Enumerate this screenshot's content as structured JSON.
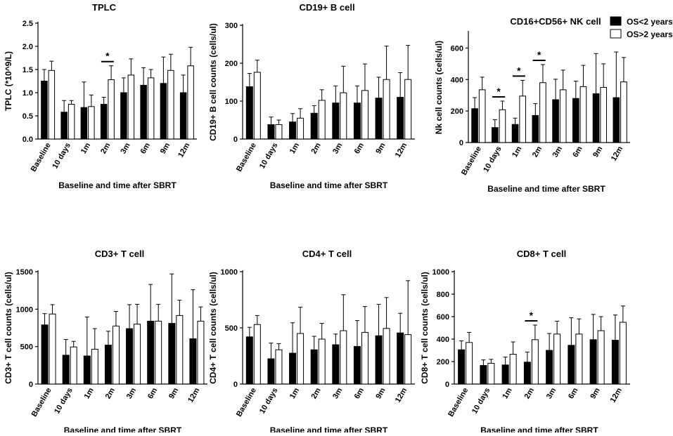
{
  "legend": {
    "series": [
      {
        "name": "OS<2 years",
        "color": "#000000"
      },
      {
        "name": "OS>2 years",
        "color": "#ffffff"
      }
    ]
  },
  "chart_data": [
    {
      "type": "bar",
      "title": "TPLC",
      "xlabel": "Baseline and time after SBRT",
      "ylabel": "TPLC (*10^9/L)",
      "ylim": [
        0,
        2.5
      ],
      "yticks": [
        "0.0",
        "0.5",
        "1.0",
        "1.5",
        "2.0",
        "2.5"
      ],
      "categories": [
        "Baseline",
        "10 days",
        "1m",
        "2m",
        "3m",
        "6m",
        "9m",
        "12m"
      ],
      "series": [
        {
          "name": "OS<2 years",
          "values": [
            1.25,
            0.58,
            0.68,
            0.75,
            1.0,
            1.16,
            1.2,
            1.0
          ],
          "errors": [
            0.25,
            0.25,
            0.55,
            0.15,
            0.32,
            0.38,
            0.57,
            0.38
          ]
        },
        {
          "name": "OS>2 years",
          "values": [
            1.48,
            0.75,
            0.7,
            1.28,
            1.38,
            1.32,
            1.48,
            1.58
          ],
          "errors": [
            0.2,
            0.08,
            0.25,
            0.3,
            0.35,
            0.18,
            0.35,
            0.4
          ]
        }
      ],
      "significance": [
        {
          "category": "2m",
          "label": "*"
        }
      ]
    },
    {
      "type": "bar",
      "title": "CD19+ B cell",
      "xlabel": "Baseline and time after SBRT",
      "ylabel": "CD19+ B cell counts (cells/ul)",
      "ylim": [
        0,
        300
      ],
      "yticks": [
        "0",
        "100",
        "200",
        "300"
      ],
      "categories": [
        "Baseline",
        "10 days",
        "1m",
        "2m",
        "3m",
        "6m",
        "9m",
        "12m"
      ],
      "series": [
        {
          "name": "OS<2 years",
          "values": [
            138,
            38,
            45,
            68,
            95,
            95,
            108,
            110
          ],
          "errors": [
            35,
            20,
            22,
            20,
            45,
            45,
            55,
            65
          ]
        },
        {
          "name": "OS>2 years",
          "values": [
            176,
            38,
            55,
            102,
            122,
            128,
            157,
            157
          ],
          "errors": [
            32,
            12,
            25,
            28,
            70,
            70,
            88,
            90
          ]
        }
      ],
      "significance": []
    },
    {
      "type": "bar",
      "title": "CD16+CD56+ NK cell",
      "xlabel": "Baseline and time after SBRT",
      "ylabel": "Nk cell counts (cells/ul)",
      "ylim": [
        0,
        700
      ],
      "yticks": [
        "0",
        "200",
        "400",
        "600"
      ],
      "categories": [
        "Baseline",
        "10 days",
        "1m",
        "2m",
        "3m",
        "6m",
        "9m",
        "12m"
      ],
      "series": [
        {
          "name": "OS<2 years",
          "values": [
            215,
            95,
            115,
            172,
            272,
            280,
            310,
            285
          ],
          "errors": [
            70,
            50,
            40,
            75,
            130,
            110,
            255,
            290
          ]
        },
        {
          "name": "OS>2 years",
          "values": [
            335,
            208,
            295,
            380,
            335,
            355,
            350,
            385
          ],
          "errors": [
            80,
            55,
            100,
            115,
            125,
            135,
            150,
            155
          ]
        }
      ],
      "significance": [
        {
          "category": "10 days",
          "label": "*"
        },
        {
          "category": "1m",
          "label": "*"
        },
        {
          "category": "2m",
          "label": "*"
        }
      ]
    },
    {
      "type": "bar",
      "title": "CD3+ T cell",
      "xlabel": "Baseline and time after SBRT",
      "ylabel": "CD3+ T cell counts (cells/ul)",
      "ylim": [
        0,
        1500
      ],
      "yticks": [
        "0",
        "500",
        "1000",
        "1500"
      ],
      "categories": [
        "Baseline",
        "10 days",
        "1m",
        "2m",
        "3m",
        "6m",
        "9m",
        "12m"
      ],
      "series": [
        {
          "name": "OS<2 years",
          "values": [
            790,
            385,
            375,
            520,
            740,
            840,
            810,
            605
          ],
          "errors": [
            150,
            210,
            520,
            185,
            320,
            490,
            660,
            655
          ]
        },
        {
          "name": "OS>2 years",
          "values": [
            935,
            495,
            465,
            775,
            800,
            840,
            915,
            840
          ],
          "errors": [
            125,
            75,
            275,
            195,
            265,
            225,
            205,
            190
          ]
        }
      ],
      "significance": []
    },
    {
      "type": "bar",
      "title": "CD4+ T cell",
      "xlabel": "Baseline and time after SBRT",
      "ylabel": "CD4+ T cell counts (cells/ul)",
      "ylim": [
        0,
        1000
      ],
      "yticks": [
        "0",
        "500",
        "1000"
      ],
      "categories": [
        "Baseline",
        "10 days",
        "1m",
        "2m",
        "3m",
        "6m",
        "9m",
        "12m"
      ],
      "series": [
        {
          "name": "OS<2 years",
          "values": [
            420,
            225,
            275,
            305,
            350,
            335,
            430,
            455
          ],
          "errors": [
            85,
            140,
            270,
            120,
            95,
            230,
            280,
            175
          ]
        },
        {
          "name": "OS>2 years",
          "values": [
            530,
            305,
            450,
            400,
            475,
            460,
            495,
            440
          ],
          "errors": [
            80,
            55,
            235,
            140,
            320,
            230,
            275,
            480
          ]
        }
      ],
      "significance": []
    },
    {
      "type": "bar",
      "title": "CD8+ T cell",
      "xlabel": "Baseline and time after SBRT",
      "ylabel": "CD8+ T cell counts (cells/ul)",
      "ylim": [
        0,
        1000
      ],
      "yticks": [
        "0",
        "200",
        "400",
        "600",
        "800",
        "1000"
      ],
      "categories": [
        "Baseline",
        "10 days",
        "1m",
        "2m",
        "3m",
        "6m",
        "9m",
        "12m"
      ],
      "series": [
        {
          "name": "OS<2 years",
          "values": [
            305,
            165,
            170,
            195,
            300,
            345,
            395,
            390
          ],
          "errors": [
            80,
            50,
            70,
            90,
            150,
            245,
            225,
            225
          ]
        },
        {
          "name": "OS>2 years",
          "values": [
            370,
            185,
            265,
            395,
            445,
            445,
            475,
            550
          ],
          "errors": [
            90,
            35,
            110,
            130,
            115,
            135,
            125,
            145
          ]
        }
      ],
      "significance": [
        {
          "category": "2m",
          "label": "*"
        }
      ]
    }
  ]
}
